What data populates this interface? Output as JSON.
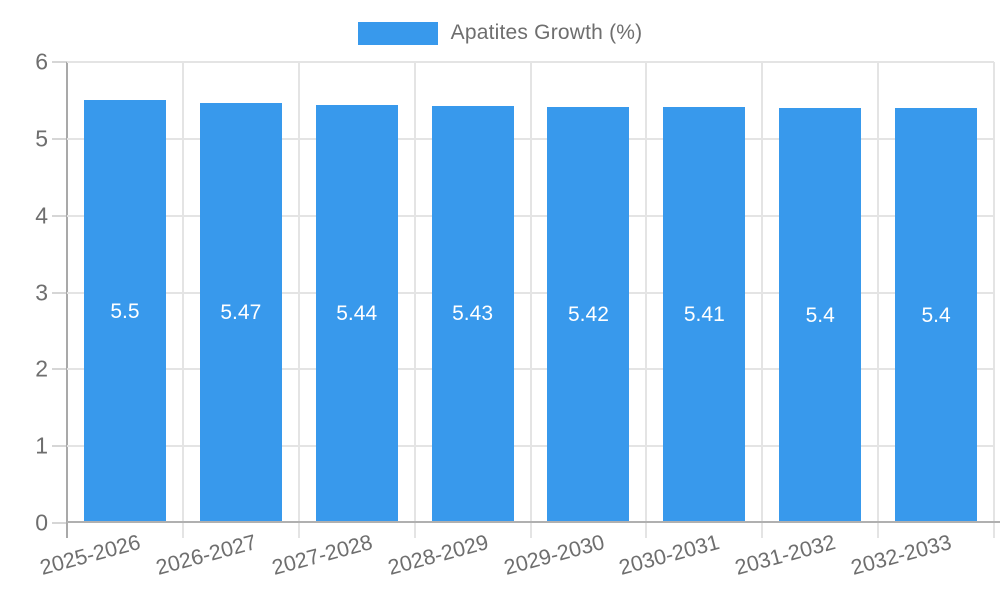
{
  "legend": {
    "label": "Apatites Growth (%)"
  },
  "chart_data": {
    "type": "bar",
    "title": "Apatites Growth (%)",
    "categories": [
      "2025-2026",
      "2026-2027",
      "2027-2028",
      "2028-2029",
      "2029-2030",
      "2030-2031",
      "2031-2032",
      "2032-2033"
    ],
    "values": [
      5.5,
      5.47,
      5.44,
      5.43,
      5.42,
      5.41,
      5.4,
      5.4
    ],
    "bar_labels": [
      "5.5",
      "5.47",
      "5.44",
      "5.43",
      "5.42",
      "5.41",
      "5.4",
      "5.4"
    ],
    "xlabel": "",
    "ylabel": "",
    "ylim": [
      0,
      6
    ],
    "yticks": [
      0,
      1,
      2,
      3,
      4,
      5,
      6
    ],
    "ytick_labels": [
      "0",
      "1",
      "2",
      "3",
      "4",
      "5",
      "6"
    ],
    "grid": "on",
    "legend_position": "top-center",
    "colors": {
      "bar": "#3899ec",
      "bar_label_text": "#ffffff",
      "grid_line": "#e4e4e4",
      "axis_line": "#aaaaaa",
      "tick_text": "#6e6e6e",
      "legend_text": "#6e6e6e"
    }
  }
}
